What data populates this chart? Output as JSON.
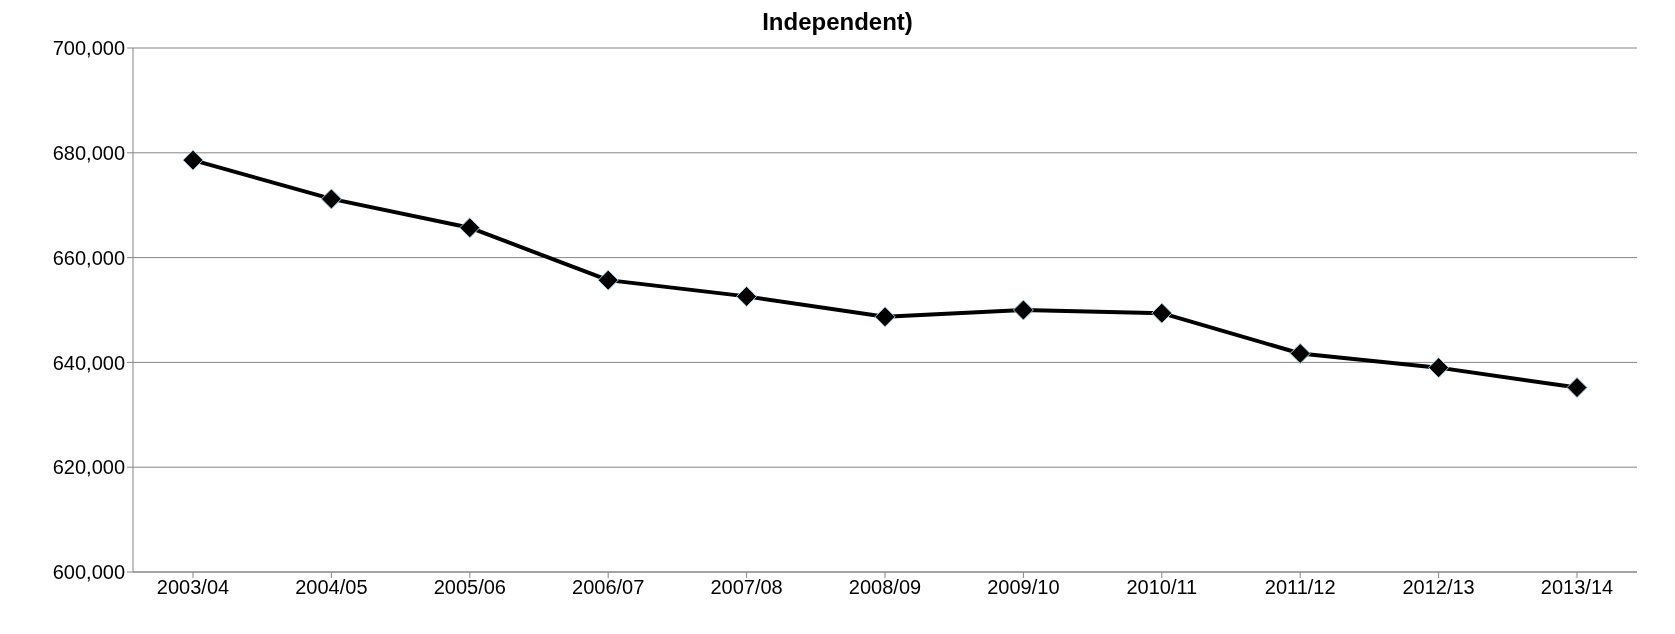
{
  "chart_data": {
    "type": "line",
    "title": "Independent)",
    "categories": [
      "2003/04",
      "2004/05",
      "2005/06",
      "2006/07",
      "2007/08",
      "2008/09",
      "2009/10",
      "2010/11",
      "2011/12",
      "2012/13",
      "2013/14"
    ],
    "series": [
      {
        "color": "#000000",
        "values": [
          678600,
          671200,
          665700,
          655700,
          652600,
          648700,
          650000,
          649400,
          641700,
          639000,
          635200
        ]
      }
    ],
    "ylim": [
      600000,
      700000
    ],
    "yticks": [
      {
        "value": 600000,
        "label": "600,000"
      },
      {
        "value": 620000,
        "label": "620,000"
      },
      {
        "value": 640000,
        "label": "640,000"
      },
      {
        "value": 660000,
        "label": "660,000"
      },
      {
        "value": 680000,
        "label": "680,000"
      },
      {
        "value": 700000,
        "label": "700,000"
      }
    ],
    "grid": "y",
    "legend": false,
    "marker": "diamond",
    "line_style": "solid"
  }
}
